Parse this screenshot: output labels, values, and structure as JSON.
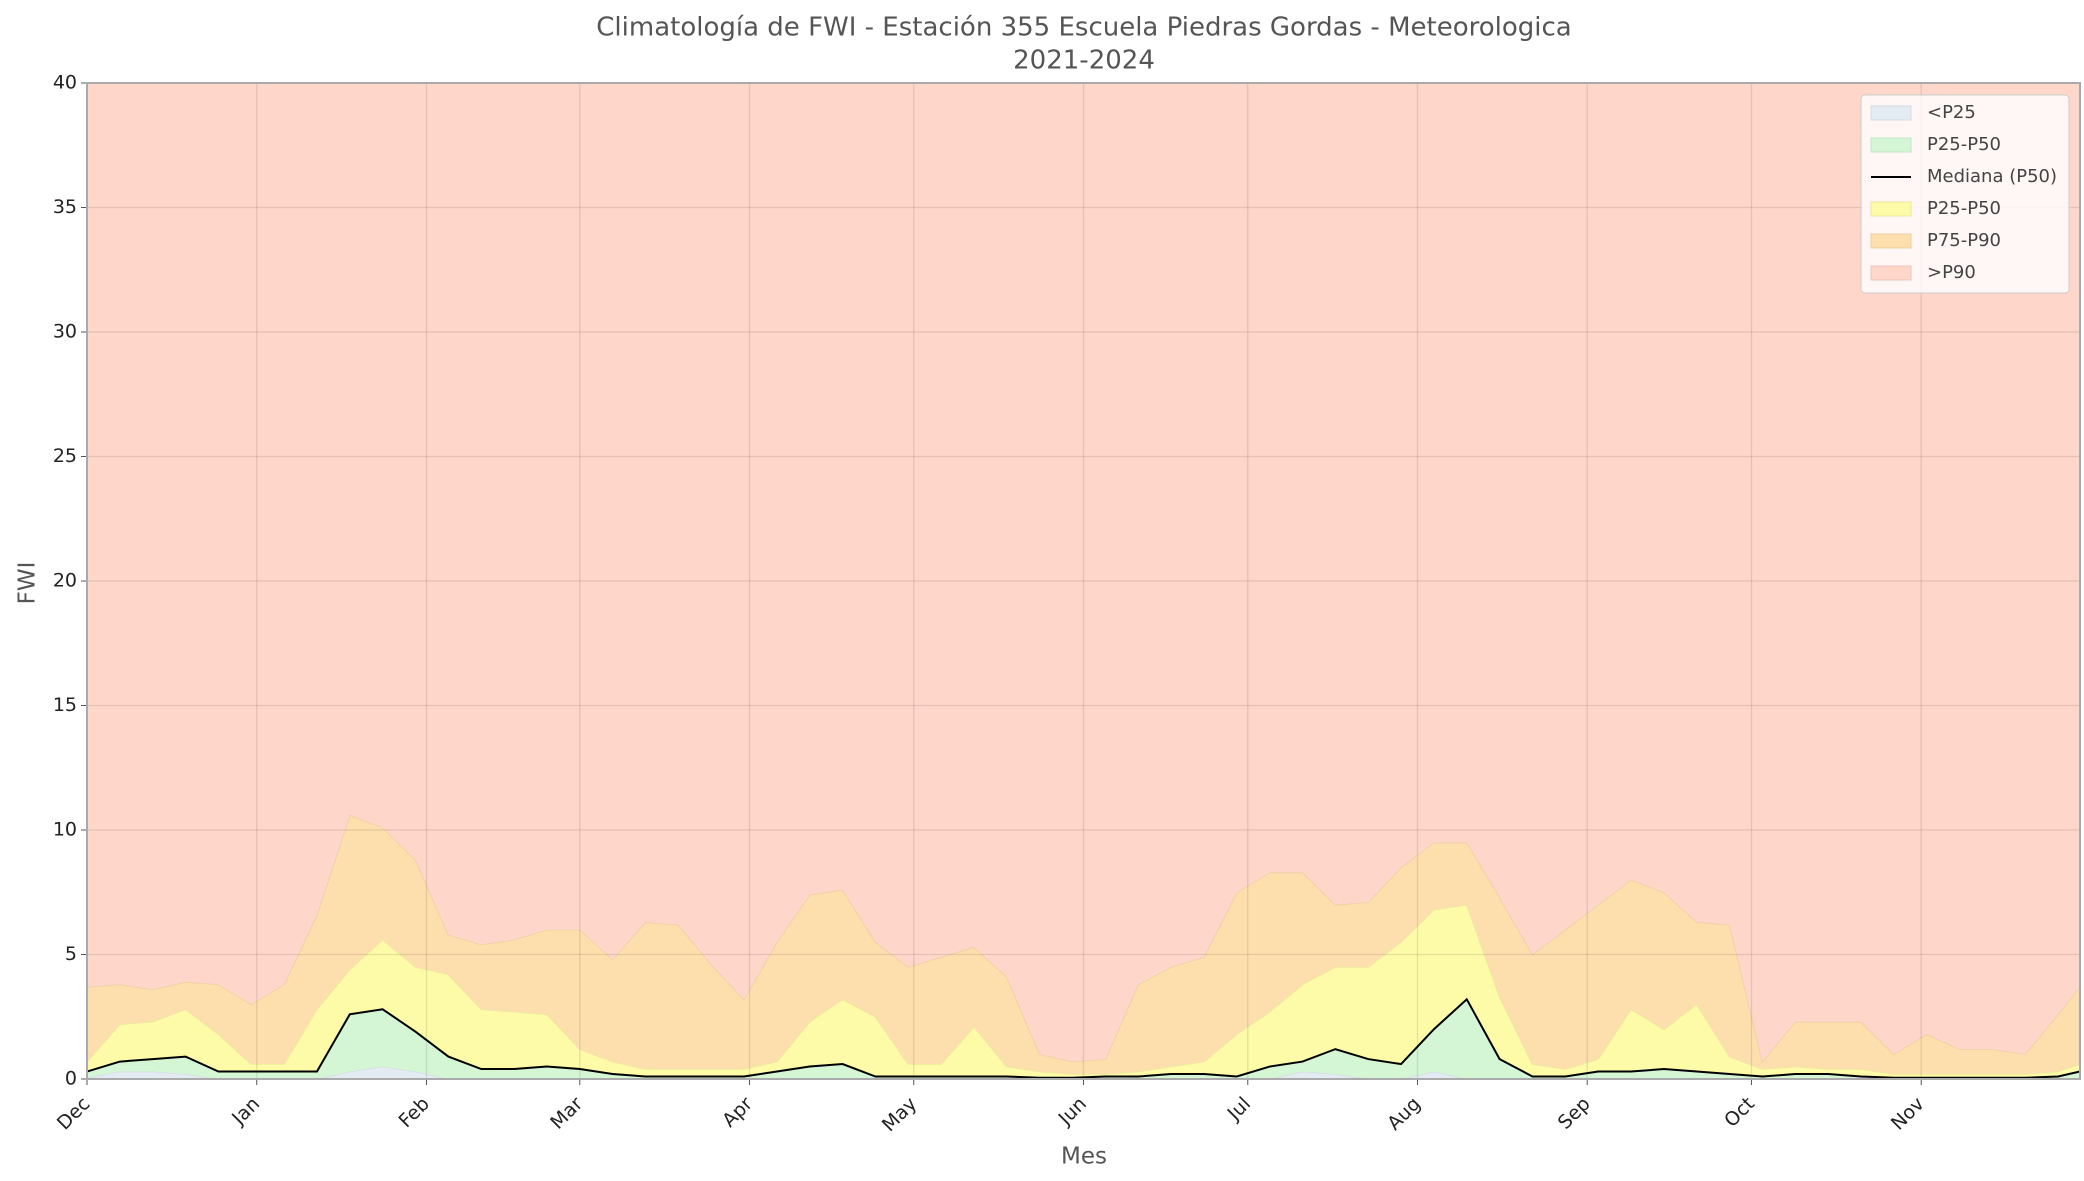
{
  "chart_data": {
    "type": "area",
    "title": "Climatología de FWI - Estación 355 Escuela Piedras Gordas - Meteorologica",
    "subtitle": "2021-2024",
    "x_label": "Mes",
    "y_label": "FWI",
    "x": [
      0,
      6,
      12,
      18,
      24,
      30,
      36,
      42,
      48,
      54,
      60,
      66,
      72,
      78,
      84,
      90,
      96,
      102,
      108,
      114,
      120,
      126,
      132,
      138,
      144,
      150,
      156,
      162,
      168,
      174,
      180,
      186,
      192,
      198,
      204,
      210,
      216,
      222,
      228,
      234,
      240,
      246,
      252,
      258,
      264,
      270,
      276,
      282,
      288,
      294,
      300,
      306,
      312,
      318,
      324,
      330,
      336,
      342,
      348,
      354,
      360,
      364
    ],
    "xlim": [
      0,
      364
    ],
    "xticks": [
      {
        "value": 0,
        "label": "Dec"
      },
      {
        "value": 31,
        "label": "Jan"
      },
      {
        "value": 62,
        "label": "Feb"
      },
      {
        "value": 90,
        "label": "Mar"
      },
      {
        "value": 121,
        "label": "Apr"
      },
      {
        "value": 151,
        "label": "May"
      },
      {
        "value": 182,
        "label": "Jun"
      },
      {
        "value": 212,
        "label": "Jul"
      },
      {
        "value": 243,
        "label": "Aug"
      },
      {
        "value": 274,
        "label": "Sep"
      },
      {
        "value": 304,
        "label": "Oct"
      },
      {
        "value": 335,
        "label": "Nov"
      }
    ],
    "ylim": [
      0,
      40
    ],
    "yticks": [
      0,
      5,
      10,
      15,
      20,
      25,
      30,
      35,
      40
    ],
    "grid": true,
    "legend": "upper right",
    "series": [
      {
        "name": "<P25",
        "color": "#e4ecf3",
        "values": [
          0.05,
          0.3,
          0.3,
          0.2,
          0,
          0,
          0,
          0,
          0.3,
          0.5,
          0.3,
          0,
          0,
          0,
          0,
          0,
          0,
          0,
          0,
          0,
          0,
          0,
          0,
          0,
          0,
          0,
          0,
          0,
          0,
          0,
          0,
          0,
          0,
          0,
          0,
          0,
          0,
          0.3,
          0.2,
          0,
          0,
          0.3,
          0,
          0,
          0,
          0,
          0,
          0,
          0,
          0,
          0,
          0,
          0,
          0,
          0,
          0,
          0,
          0,
          0,
          0,
          0,
          0
        ]
      },
      {
        "name": "P25-P50",
        "color": "#d4f6d4",
        "values": [
          0.3,
          0.7,
          0.8,
          0.9,
          0.3,
          0.3,
          0.3,
          0.3,
          2.6,
          2.8,
          1.9,
          0.9,
          0.4,
          0.4,
          0.5,
          0.4,
          0.2,
          0.1,
          0.1,
          0.1,
          0.1,
          0.3,
          0.5,
          0.6,
          0.1,
          0.1,
          0.1,
          0.1,
          0.1,
          0.05,
          0.05,
          0.1,
          0.1,
          0.2,
          0.2,
          0.1,
          0.5,
          0.7,
          1.2,
          0.8,
          0.6,
          2.0,
          3.2,
          0.8,
          0.1,
          0.1,
          0.3,
          0.3,
          0.4,
          0.3,
          0.2,
          0.1,
          0.2,
          0.2,
          0.1,
          0.05,
          0.05,
          0.05,
          0.05,
          0.05,
          0.1,
          0.3
        ]
      },
      {
        "name": "Mediana (P50)",
        "color": "#000000",
        "type": "line",
        "values": [
          0.3,
          0.7,
          0.8,
          0.9,
          0.3,
          0.3,
          0.3,
          0.3,
          2.6,
          2.8,
          1.9,
          0.9,
          0.4,
          0.4,
          0.5,
          0.4,
          0.2,
          0.1,
          0.1,
          0.1,
          0.1,
          0.3,
          0.5,
          0.6,
          0.1,
          0.1,
          0.1,
          0.1,
          0.1,
          0.05,
          0.05,
          0.1,
          0.1,
          0.2,
          0.2,
          0.1,
          0.5,
          0.7,
          1.2,
          0.8,
          0.6,
          2.0,
          3.2,
          0.8,
          0.1,
          0.1,
          0.3,
          0.3,
          0.4,
          0.3,
          0.2,
          0.1,
          0.2,
          0.2,
          0.1,
          0.05,
          0.05,
          0.05,
          0.05,
          0.05,
          0.1,
          0.3
        ]
      },
      {
        "name": "P25-P50",
        "color": "#fdfba8",
        "values": [
          0.7,
          2.2,
          2.3,
          2.8,
          1.8,
          0.6,
          0.6,
          2.8,
          4.4,
          5.6,
          4.5,
          4.2,
          2.8,
          2.7,
          2.6,
          1.2,
          0.7,
          0.4,
          0.4,
          0.4,
          0.4,
          0.7,
          2.3,
          3.2,
          2.5,
          0.6,
          0.6,
          2.1,
          0.5,
          0.3,
          0.2,
          0.2,
          0.3,
          0.5,
          0.7,
          1.8,
          2.7,
          3.8,
          4.5,
          4.5,
          5.5,
          6.8,
          7.0,
          3.3,
          0.6,
          0.4,
          0.8,
          2.8,
          2.0,
          3.0,
          0.9,
          0.4,
          0.5,
          0.4,
          0.4,
          0.2,
          0.2,
          0.2,
          0.2,
          0.2,
          0.3,
          0.6
        ]
      },
      {
        "name": "P75-P90",
        "color": "#fddfae",
        "values": [
          3.7,
          3.8,
          3.6,
          3.9,
          3.8,
          3.0,
          3.8,
          6.6,
          10.6,
          10.1,
          8.8,
          5.8,
          5.4,
          5.6,
          6.0,
          6.0,
          4.8,
          6.3,
          6.2,
          4.6,
          3.2,
          5.5,
          7.4,
          7.6,
          5.5,
          4.5,
          4.9,
          5.3,
          4.1,
          1.0,
          0.7,
          0.8,
          3.8,
          4.5,
          4.9,
          7.5,
          8.3,
          8.3,
          7.0,
          7.1,
          8.5,
          9.5,
          9.5,
          7.3,
          5.0,
          6.0,
          7.0,
          8.0,
          7.5,
          6.3,
          6.2,
          0.7,
          2.3,
          2.3,
          2.3,
          1.0,
          1.8,
          1.2,
          1.2,
          1.0,
          2.6,
          3.7
        ]
      },
      {
        "name": ">P90",
        "color": "#fed6ca"
      }
    ]
  }
}
